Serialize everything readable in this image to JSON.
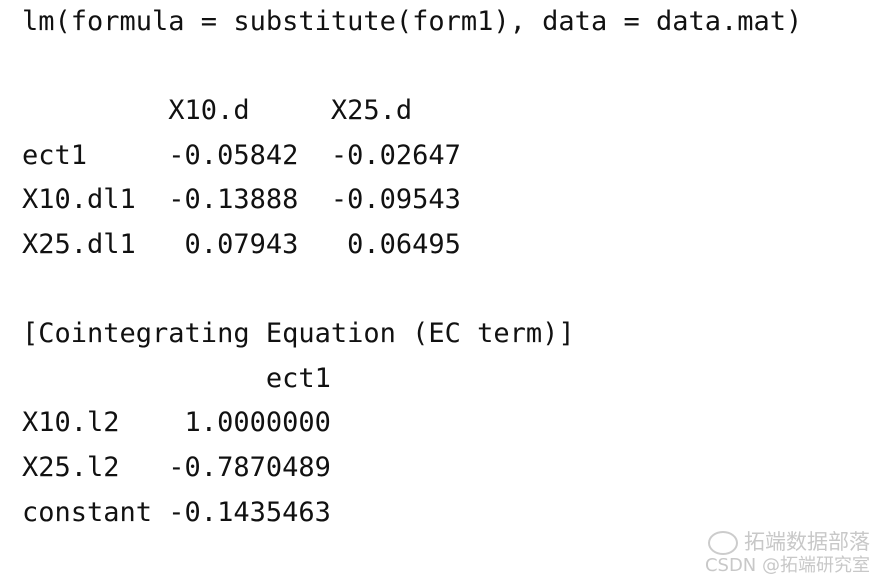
{
  "console": {
    "lines": [
      "lm(formula = substitute(form1), data = data.mat)",
      "",
      "         X10.d     X25.d",
      "ect1     -0.05842  -0.02647",
      "X10.dl1  -0.13888  -0.09543",
      "X25.dl1   0.07943   0.06495",
      "",
      "[Cointegrating Equation (EC term)]",
      "               ect1",
      "X10.l2    1.0000000",
      "X25.l2   -0.7870489",
      "constant -0.1435463"
    ]
  },
  "watermark": {
    "line1": "拓端数据部落",
    "line2": "CSDN @拓端研究室",
    "icon": "wechat-icon"
  }
}
